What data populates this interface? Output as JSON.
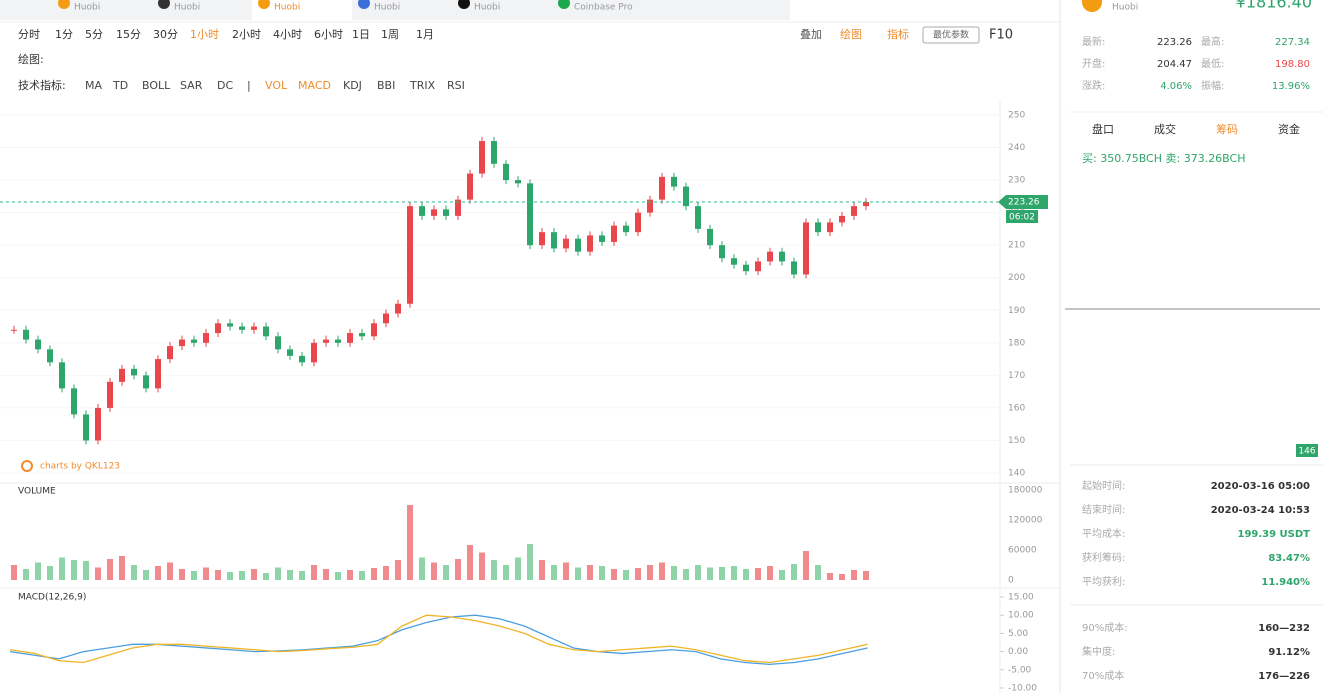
{
  "tabs": [
    "Huobi",
    "Huobi",
    "Huobi",
    "Huobi",
    "Huobi",
    "Coinbase Pro"
  ],
  "toolbar": {
    "periods": [
      "分时",
      "1分",
      "5分",
      "15分",
      "30分",
      "1小时",
      "2小时",
      "4小时",
      "6小时",
      "1日",
      "1周",
      "1月"
    ],
    "active_period": "1小时",
    "draw_label": "绘图:",
    "indicator_label": "技术指标:",
    "indicators": [
      "MA",
      "TD",
      "BOLL",
      "SAR",
      "DC",
      "|",
      "VOL",
      "MACD",
      "KDJ",
      "BBI",
      "TRIX",
      "RSI"
    ],
    "active_indicators": [
      "VOL",
      "MACD"
    ],
    "actions": [
      "叠加",
      "绘图",
      "指标"
    ],
    "best_params": "最优参数",
    "f10": "F10"
  },
  "price_chart": {
    "type": "candlestick",
    "watermark": "charts by QKL123",
    "close": [
      184,
      181,
      178,
      174,
      166,
      158,
      150,
      160,
      168,
      172,
      170,
      166,
      175,
      179,
      181,
      180,
      183,
      186,
      185,
      184,
      185,
      182,
      178,
      176,
      174,
      180,
      181,
      180,
      183,
      182,
      186,
      189,
      192,
      222,
      219,
      221,
      219,
      224,
      232,
      242,
      235,
      230,
      229,
      210,
      214,
      209,
      212,
      208,
      213,
      211,
      216,
      214,
      220,
      224,
      231,
      228,
      222,
      215,
      210,
      206,
      204,
      202,
      205,
      208,
      205,
      201,
      217,
      214,
      217,
      219,
      222,
      223.26
    ],
    "ylim": [
      140,
      250
    ],
    "yticks": [
      140,
      150,
      160,
      170,
      180,
      190,
      200,
      210,
      220,
      230,
      240,
      250
    ],
    "last_price": {
      "value": 223.26,
      "label": "223.26"
    },
    "countdown": "06:02",
    "chip_low": "146",
    "up_color": "#e9474b",
    "down_color": "#2ea56b"
  },
  "volume_chart": {
    "type": "bar",
    "title": "VOLUME",
    "values": [
      30000,
      22000,
      35000,
      28000,
      45000,
      40000,
      38000,
      25000,
      42000,
      48000,
      30000,
      20000,
      28000,
      35000,
      22000,
      18000,
      25000,
      20000,
      16000,
      18000,
      22000,
      14000,
      25000,
      20000,
      18000,
      30000,
      22000,
      16000,
      20000,
      18000,
      24000,
      28000,
      40000,
      150000,
      45000,
      35000,
      30000,
      42000,
      70000,
      55000,
      40000,
      30000,
      45000,
      72000,
      40000,
      30000,
      35000,
      25000,
      30000,
      28000,
      22000,
      20000,
      24000,
      30000,
      35000,
      28000,
      22000,
      30000,
      25000,
      26000,
      28000,
      22000,
      24000,
      28000,
      20000,
      32000,
      58000,
      30000,
      14000,
      12000,
      20000,
      18000
    ],
    "ylim": [
      0,
      180000
    ],
    "yticks": [
      0,
      60000,
      120000,
      180000
    ]
  },
  "macd_chart": {
    "type": "line",
    "title": "MACD(12,26,9)",
    "series": [
      {
        "name": "DIF",
        "color": "#4a9fe0",
        "values": [
          0,
          -1,
          -2,
          0,
          1,
          2,
          2,
          1.5,
          1,
          0.5,
          0,
          0.2,
          0.5,
          1,
          1.5,
          3,
          6,
          8,
          9.5,
          10,
          9,
          7,
          4,
          1,
          0,
          -0.5,
          0,
          0.5,
          0,
          -2,
          -3,
          -3.5,
          -3,
          -2,
          -0.5,
          1
        ]
      },
      {
        "name": "DEA",
        "color": "#f0b429",
        "values": [
          0.5,
          -0.5,
          -2.5,
          -3,
          -1,
          1,
          2,
          2,
          1.5,
          1,
          0.5,
          0,
          0.3,
          0.8,
          1.2,
          2,
          7,
          10,
          9.5,
          8.5,
          7,
          5,
          2,
          0.5,
          0,
          0.5,
          1,
          1.5,
          0.5,
          -1,
          -2.5,
          -3,
          -2,
          -1,
          0.5,
          2
        ]
      }
    ],
    "ylim": [
      -10,
      15
    ],
    "yticks": [
      {
        "value": -10,
        "label": "-10.00"
      },
      {
        "value": -5,
        "label": "-5.00"
      },
      {
        "value": 0,
        "label": "0.00"
      },
      {
        "value": 5,
        "label": "5.00"
      },
      {
        "value": 10,
        "label": "10.00"
      },
      {
        "value": 15,
        "label": "15.00"
      }
    ]
  },
  "panel": {
    "exchange": "Huobi",
    "price": "¥1816.40",
    "stats": [
      [
        "最新:",
        "223.26",
        "最高:",
        "227.34"
      ],
      [
        "开盘:",
        "204.47",
        "最低:",
        "198.80"
      ],
      [
        "涨跌:",
        "4.06%",
        "振幅:",
        "13.96%"
      ]
    ],
    "tabs": [
      "盘口",
      "成交",
      "筹码",
      "资金"
    ],
    "buy_sell": "买: 350.75BCH  卖: 373.26BCH",
    "info": [
      [
        "起始时间:",
        "2020-03-16 05:00"
      ],
      [
        "结束时间:",
        "2020-03-24 10:53"
      ],
      [
        "平均成本:",
        "199.39 USDT"
      ],
      [
        "获利筹码:",
        "83.47%"
      ],
      [
        "平均获利:",
        "11.940%"
      ]
    ],
    "cost": [
      [
        "90%成本:",
        "160—232"
      ],
      [
        "集中度:",
        "91.12%"
      ],
      [
        "70%成本",
        "176—226"
      ]
    ]
  }
}
